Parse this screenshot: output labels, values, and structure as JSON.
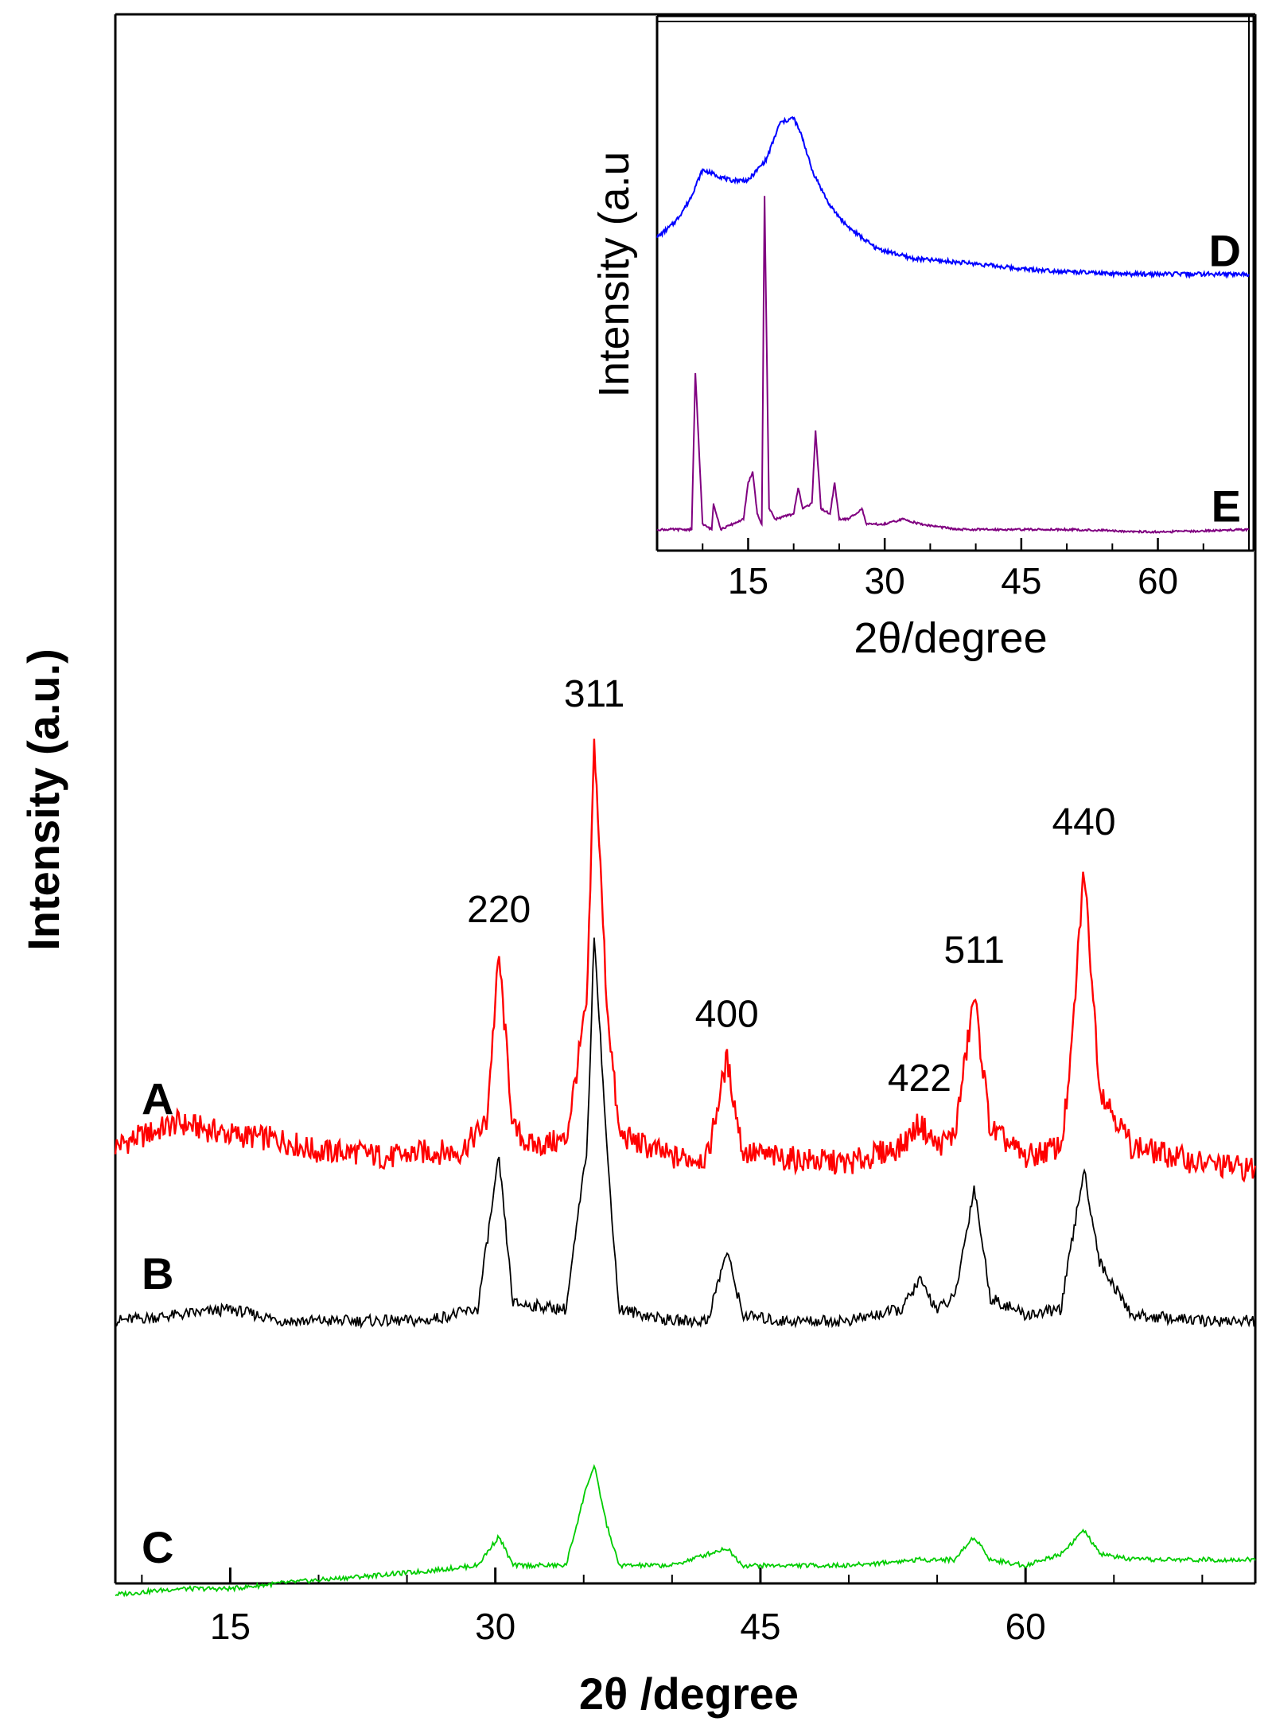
{
  "chart_data": [
    {
      "type": "line",
      "xlabel": "2θ /degree",
      "ylabel": "Intensity (a.u.)",
      "xlim": [
        8.5,
        73
      ],
      "xticks": [
        15,
        30,
        45,
        60
      ],
      "yticks": "none",
      "grid": false,
      "colors": {
        "A": "#ff0000",
        "B": "#000000",
        "C": "#00cc00"
      },
      "series": [
        {
          "name": "A",
          "x": [
            8.5,
            12,
            15,
            18,
            20,
            22,
            24,
            26,
            28,
            29.5,
            30.2,
            31,
            32,
            34,
            35.2,
            35.6,
            36.3,
            37,
            40,
            42,
            43.1,
            44,
            46,
            50,
            53,
            54,
            55,
            56,
            57.1,
            58,
            60,
            62,
            62.5,
            63.3,
            64.2,
            66,
            70,
            73
          ],
          "y": [
            0.3,
            0.34,
            0.32,
            0.31,
            0.29,
            0.29,
            0.28,
            0.29,
            0.29,
            0.34,
            0.63,
            0.33,
            0.3,
            0.31,
            0.55,
            1.0,
            0.55,
            0.32,
            0.28,
            0.28,
            0.45,
            0.29,
            0.28,
            0.27,
            0.3,
            0.34,
            0.3,
            0.32,
            0.56,
            0.33,
            0.28,
            0.3,
            0.42,
            0.78,
            0.4,
            0.3,
            0.27,
            0.26
          ]
        },
        {
          "name": "B",
          "x": [
            8.5,
            12,
            15,
            18,
            22,
            26,
            29,
            30.2,
            31,
            34,
            35.2,
            35.6,
            36.3,
            37,
            40,
            42,
            43.1,
            44,
            46,
            50,
            53,
            54,
            55,
            56,
            57.1,
            58,
            60,
            62,
            63.3,
            64.2,
            66,
            70,
            73
          ],
          "y": [
            0.0,
            0.01,
            0.02,
            0.0,
            0.0,
            0.0,
            0.02,
            0.28,
            0.03,
            0.02,
            0.3,
            0.67,
            0.3,
            0.02,
            0.0,
            0.0,
            0.12,
            0.01,
            0.0,
            0.0,
            0.02,
            0.07,
            0.02,
            0.04,
            0.23,
            0.04,
            0.01,
            0.02,
            0.26,
            0.1,
            0.01,
            0.0,
            0.0
          ]
        },
        {
          "name": "C",
          "x": [
            8.5,
            12,
            15,
            18,
            22,
            26,
            29,
            30.2,
            31,
            34,
            35.2,
            35.6,
            36.3,
            37,
            40,
            43.1,
            44,
            47,
            50,
            54,
            56,
            57.1,
            58,
            60,
            62,
            63.3,
            64.2,
            66,
            70,
            73
          ],
          "y": [
            -0.47,
            -0.46,
            -0.46,
            -0.45,
            -0.44,
            -0.43,
            -0.42,
            -0.37,
            -0.42,
            -0.42,
            -0.28,
            -0.25,
            -0.35,
            -0.42,
            -0.42,
            -0.39,
            -0.42,
            -0.42,
            -0.42,
            -0.41,
            -0.41,
            -0.37,
            -0.41,
            -0.42,
            -0.4,
            -0.36,
            -0.4,
            -0.41,
            -0.41,
            -0.41
          ]
        }
      ],
      "series_labels": [
        "A",
        "B",
        "C"
      ],
      "annotations": [
        {
          "text": "220",
          "x": 30.2
        },
        {
          "text": "311",
          "x": 35.6
        },
        {
          "text": "400",
          "x": 43.1
        },
        {
          "text": "422",
          "x": 54
        },
        {
          "text": "511",
          "x": 57.1
        },
        {
          "text": "440",
          "x": 63.3
        }
      ]
    },
    {
      "type": "line",
      "inset": true,
      "xlabel": "2θ/degree",
      "ylabel": "Intensity (a.u",
      "xlim": [
        5,
        70
      ],
      "xticks": [
        15,
        30,
        45,
        60
      ],
      "grid": false,
      "colors": {
        "D": "#0000ff",
        "E": "#800080"
      },
      "series": [
        {
          "name": "D",
          "x": [
            5,
            7,
            8.5,
            10,
            11.5,
            13,
            15,
            17,
            18.5,
            20,
            21,
            22,
            24,
            26,
            29,
            33,
            40,
            45,
            55,
            65,
            70
          ],
          "y": [
            0.57,
            0.6,
            0.64,
            0.7,
            0.69,
            0.68,
            0.68,
            0.72,
            0.79,
            0.8,
            0.76,
            0.7,
            0.63,
            0.59,
            0.55,
            0.53,
            0.52,
            0.51,
            0.5,
            0.5,
            0.5
          ]
        },
        {
          "name": "E",
          "x": [
            5,
            8,
            8.8,
            9.2,
            10,
            11,
            11.2,
            12,
            14.5,
            15,
            15.5,
            16,
            16.5,
            16.8,
            17.3,
            18,
            20,
            20.5,
            21,
            22,
            22.4,
            23,
            24,
            24.5,
            25,
            26,
            27.5,
            28,
            30,
            32,
            34,
            38,
            50,
            60,
            70
          ],
          "y": [
            0.01,
            0.01,
            0.01,
            0.31,
            0.02,
            0.01,
            0.06,
            0.01,
            0.03,
            0.1,
            0.12,
            0.04,
            0.02,
            0.65,
            0.05,
            0.03,
            0.04,
            0.09,
            0.05,
            0.06,
            0.2,
            0.05,
            0.04,
            0.1,
            0.03,
            0.03,
            0.05,
            0.02,
            0.02,
            0.03,
            0.02,
            0.01,
            0.01,
            0.005,
            0.01
          ]
        }
      ],
      "series_labels": [
        "D",
        "E"
      ]
    }
  ]
}
